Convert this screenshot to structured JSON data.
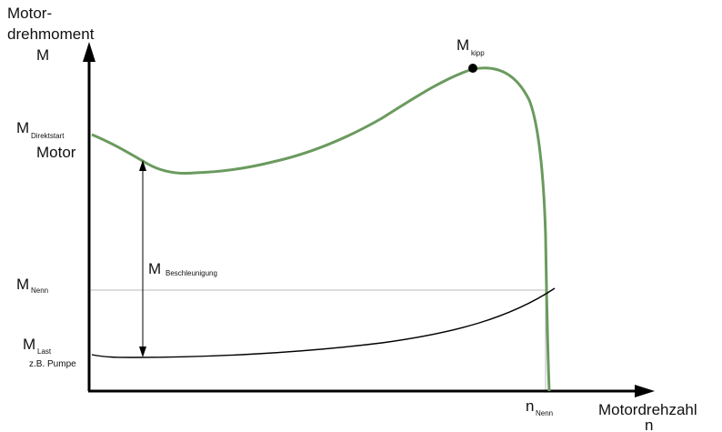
{
  "y_axis": {
    "title_line1": "Motor-",
    "title_line2": "drehmoment",
    "symbol": "M"
  },
  "x_axis": {
    "title": "Motordrehzahl",
    "symbol": "n"
  },
  "labels": {
    "m_direktstart": {
      "main": "M",
      "sub": "Direktstart"
    },
    "motor": "Motor",
    "m_kipp": {
      "main": "M",
      "sub": "kipp"
    },
    "m_beschleunigung": {
      "main": "M",
      "sub": "Beschleunigung"
    },
    "m_nenn": {
      "main": "M",
      "sub": "Nenn"
    },
    "m_last": {
      "main": "M",
      "sub": "Last"
    },
    "last_note": "z.B. Pumpe",
    "n_nenn": {
      "main": "n",
      "sub": "Nenn"
    }
  },
  "colors": {
    "motor_curve": "#6a9a5e",
    "axes": "#000000",
    "reference_line": "#bbbbbb",
    "load_curve": "#000000"
  }
}
